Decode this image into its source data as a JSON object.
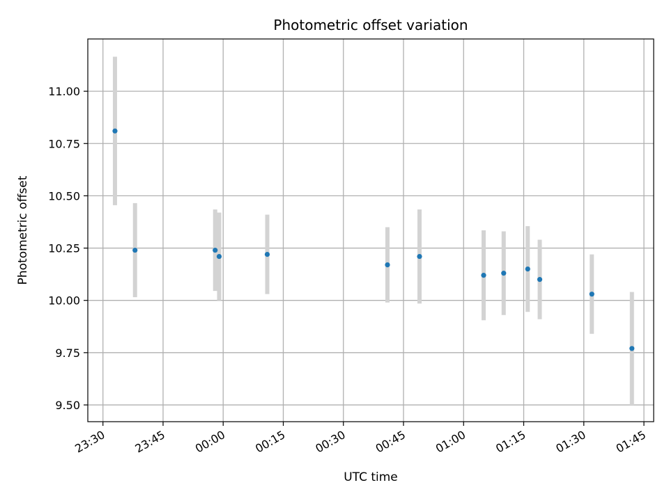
{
  "chart_data": {
    "type": "scatter",
    "title": "Photometric offset variation",
    "xlabel": "UTC time",
    "ylabel": "Photometric offset",
    "x_tick_labels": [
      "23:30",
      "23:45",
      "00:00",
      "00:15",
      "00:30",
      "00:45",
      "01:00",
      "01:15",
      "01:30",
      "01:45"
    ],
    "y_tick_labels": [
      "9.50",
      "9.75",
      "10.00",
      "10.25",
      "10.50",
      "10.75",
      "11.00"
    ],
    "y_ticks": [
      9.5,
      9.75,
      10.0,
      10.25,
      10.5,
      10.75,
      11.0
    ],
    "ylim": [
      9.42,
      11.25
    ],
    "grid": true,
    "points": [
      {
        "time": "23:33",
        "y": 10.81,
        "err": 0.355
      },
      {
        "time": "23:38",
        "y": 10.24,
        "err": 0.225
      },
      {
        "time": "23:58",
        "y": 10.24,
        "err": 0.195
      },
      {
        "time": "23:59",
        "y": 10.21,
        "err": 0.21
      },
      {
        "time": "00:11",
        "y": 10.22,
        "err": 0.19
      },
      {
        "time": "00:41",
        "y": 10.17,
        "err": 0.18
      },
      {
        "time": "00:49",
        "y": 10.21,
        "err": 0.225
      },
      {
        "time": "01:05",
        "y": 10.12,
        "err": 0.215
      },
      {
        "time": "01:10",
        "y": 10.13,
        "err": 0.2
      },
      {
        "time": "01:16",
        "y": 10.15,
        "err": 0.205
      },
      {
        "time": "01:19",
        "y": 10.1,
        "err": 0.19
      },
      {
        "time": "01:32",
        "y": 10.03,
        "err": 0.19
      },
      {
        "time": "01:42",
        "y": 9.77,
        "err": 0.27
      }
    ],
    "colors": {
      "point": "#1f77b4",
      "errorbar": "#d3d3d3",
      "grid": "#b0b0b0"
    }
  }
}
